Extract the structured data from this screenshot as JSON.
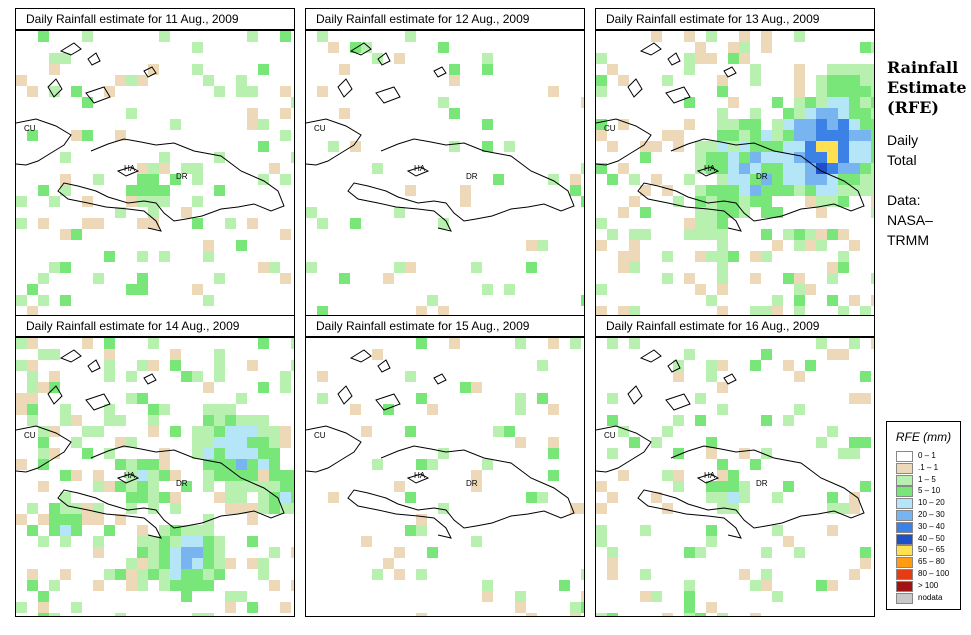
{
  "side": {
    "title_lines": [
      "Rainfall",
      "Estimate",
      "(RFE)"
    ],
    "period_lines": [
      "Daily",
      "Total"
    ],
    "source_lines": [
      "Data:",
      "NASA–",
      "TRMM"
    ]
  },
  "map_labels": {
    "cuba": "CU",
    "haiti": "HA",
    "dominican_republic": "DR"
  },
  "legend": {
    "title": "RFE (mm)",
    "items": [
      {
        "label": "0 – 1",
        "color": "#ffffff"
      },
      {
        "label": ".1 – 1",
        "color": "#edd9b8"
      },
      {
        "label": "1 – 5",
        "color": "#b8f0b0"
      },
      {
        "label": "5 – 10",
        "color": "#78e678"
      },
      {
        "label": "10 – 20",
        "color": "#b4e6f8"
      },
      {
        "label": "20 – 30",
        "color": "#78b4f0"
      },
      {
        "label": "30 – 40",
        "color": "#3c82e6"
      },
      {
        "label": "40 – 50",
        "color": "#1e50c8"
      },
      {
        "label": "50 – 65",
        "color": "#ffe050"
      },
      {
        "label": "65 – 80",
        "color": "#ff9c14"
      },
      {
        "label": "80 – 100",
        "color": "#e63c14"
      },
      {
        "label": "> 100",
        "color": "#a01414"
      },
      {
        "label": "nodata",
        "color": "#c8c8c8"
      }
    ]
  },
  "panels": [
    {
      "title": "Daily Rainfall estimate for  11 Aug., 2009",
      "date": "11 Aug., 2009",
      "intensity": "low"
    },
    {
      "title": "Daily Rainfall estimate for  12 Aug., 2009",
      "date": "12 Aug., 2009",
      "intensity": "very-low"
    },
    {
      "title": "Daily Rainfall estimate for  13 Aug., 2009",
      "date": "13 Aug., 2009",
      "intensity": "high"
    },
    {
      "title": "Daily Rainfall estimate for  14 Aug., 2009",
      "date": "14 Aug., 2009",
      "intensity": "moderate"
    },
    {
      "title": "Daily Rainfall estimate for  15 Aug., 2009",
      "date": "15 Aug., 2009",
      "intensity": "very-low"
    },
    {
      "title": "Daily Rainfall estimate for  16 Aug., 2009",
      "date": "16 Aug., 2009",
      "intensity": "low"
    }
  ]
}
